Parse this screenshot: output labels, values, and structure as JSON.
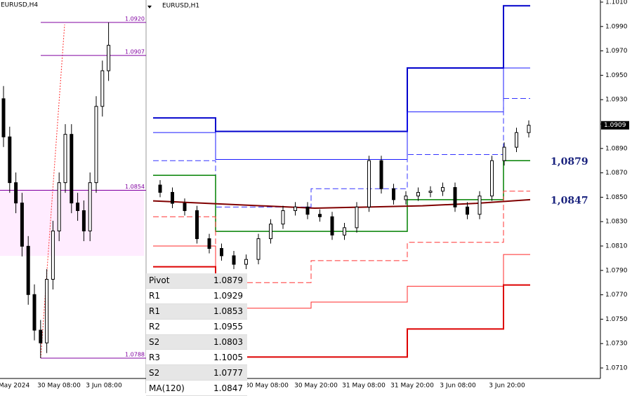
{
  "left_panel": {
    "symbol": "EURUSD,H4",
    "levels": [
      {
        "value": 1.092,
        "label": "1.0920"
      },
      {
        "value": 1.0907,
        "label": "1.0907"
      },
      {
        "value": 1.0854,
        "label": "1.0854"
      },
      {
        "value": 1.0788,
        "label": "1.0788"
      }
    ],
    "x_labels": [
      "May 2024",
      "30 May 08:00",
      "3 Jun 08:00"
    ],
    "candles": [
      [
        1.089,
        1.0895,
        1.0871,
        1.0875
      ],
      [
        1.0875,
        1.0879,
        1.0853,
        1.0857
      ],
      [
        1.0857,
        1.0861,
        1.0845,
        1.0849
      ],
      [
        1.0849,
        1.0853,
        1.0828,
        1.0832
      ],
      [
        1.0832,
        1.0836,
        1.0809,
        1.0813
      ],
      [
        1.0813,
        1.0817,
        1.0795,
        1.0799
      ],
      [
        1.0799,
        1.0803,
        1.0788,
        1.0794
      ],
      [
        1.0794,
        1.0823,
        1.079,
        1.0819
      ],
      [
        1.0819,
        1.0842,
        1.0815,
        1.0838
      ],
      [
        1.0838,
        1.0861,
        1.0834,
        1.0857
      ],
      [
        1.0857,
        1.088,
        1.0853,
        1.0876
      ],
      [
        1.0876,
        1.088,
        1.0845,
        1.0849
      ],
      [
        1.0849,
        1.0853,
        1.0842,
        1.0846
      ],
      [
        1.0846,
        1.085,
        1.0834,
        1.0838
      ],
      [
        1.0838,
        1.0861,
        1.0834,
        1.0857
      ],
      [
        1.0857,
        1.0891,
        1.0853,
        1.0887
      ],
      [
        1.0887,
        1.0905,
        1.0883,
        1.0901
      ],
      [
        1.0901,
        1.092,
        1.0897,
        1.0911
      ]
    ]
  },
  "right_panel": {
    "symbol": "EURUSD,H1",
    "yticks": [
      {
        "value": 1.071,
        "label": "1.0710"
      },
      {
        "value": 1.073,
        "label": "1.0730"
      },
      {
        "value": 1.075,
        "label": "1.0750"
      },
      {
        "value": 1.077,
        "label": "1.0770"
      },
      {
        "value": 1.079,
        "label": "1.0790"
      },
      {
        "value": 1.081,
        "label": "1.0810"
      },
      {
        "value": 1.083,
        "label": "1.0830"
      },
      {
        "value": 1.085,
        "label": "1.0850"
      },
      {
        "value": 1.087,
        "label": "1.0870"
      },
      {
        "value": 1.089,
        "label": "1.0890"
      },
      {
        "value": 1.091,
        "label": "1.0910"
      },
      {
        "value": 1.093,
        "label": "1.0930"
      },
      {
        "value": 1.095,
        "label": "1.0950"
      },
      {
        "value": 1.097,
        "label": "1.0970"
      },
      {
        "value": 1.099,
        "label": "1.0990"
      },
      {
        "value": 1.101,
        "label": "1.1010"
      }
    ],
    "x_labels": [
      "30 May 08:00",
      "30 May 20:00",
      "31 May 08:00",
      "31 May 20:00",
      "3 Jun 08:00",
      "3 Jun 20:00"
    ],
    "price": {
      "value": 1.0909,
      "label": "1.0909"
    },
    "annotations": [
      {
        "value": 1.0879,
        "label": "1,0879"
      },
      {
        "value": 1.0847,
        "label": "1,0847"
      }
    ],
    "levels": [
      {
        "color": "#0000cc",
        "width": 2,
        "dash": false,
        "values": [
          1.0915,
          1.0904,
          1.0904,
          1.0956,
          1.1007
        ]
      },
      {
        "color": "#1a1aff",
        "width": 1,
        "dash": false,
        "values": [
          1.0903,
          1.0881,
          1.0881,
          1.092,
          1.0956
        ]
      },
      {
        "color": "#3333ff",
        "width": 1,
        "dash": true,
        "values": [
          1.088,
          1.0842,
          1.0857,
          1.0885,
          1.0931
        ]
      },
      {
        "color": "#008000",
        "width": 1.5,
        "dash": false,
        "values": [
          1.0868,
          1.0822,
          1.0822,
          1.0848,
          1.088
        ]
      },
      {
        "color": "#ff3333",
        "width": 1,
        "dash": true,
        "values": [
          1.0834,
          1.078,
          1.0798,
          1.0813,
          1.0855
        ]
      },
      {
        "color": "#ff2a2a",
        "width": 1,
        "dash": false,
        "values": [
          1.081,
          1.0759,
          1.0764,
          1.0777,
          1.0803
        ]
      },
      {
        "color": "#dd0000",
        "width": 2,
        "dash": false,
        "values": [
          1.0793,
          1.0719,
          1.0719,
          1.0742,
          1.0778
        ]
      }
    ],
    "ma": {
      "color": "#800000",
      "values": [
        1.0847,
        1.0845,
        1.0843,
        1.0841,
        1.0842,
        1.0843,
        1.0845,
        1.0848
      ]
    },
    "candles": [
      [
        1.086,
        1.0864,
        1.085,
        1.0854
      ],
      [
        1.0854,
        1.0858,
        1.0841,
        1.0845
      ],
      [
        1.0845,
        1.0849,
        1.0835,
        1.0839
      ],
      [
        1.0839,
        1.0843,
        1.0812,
        1.0816
      ],
      [
        1.0816,
        1.082,
        1.0804,
        1.0808
      ],
      [
        1.0808,
        1.0812,
        1.0798,
        1.0802
      ],
      [
        1.0802,
        1.0806,
        1.0791,
        1.0795
      ],
      [
        1.0795,
        1.0803,
        1.0791,
        1.0799
      ],
      [
        1.0799,
        1.082,
        1.0795,
        1.0816
      ],
      [
        1.0816,
        1.0832,
        1.0812,
        1.0828
      ],
      [
        1.0828,
        1.0843,
        1.0824,
        1.0839
      ],
      [
        1.0839,
        1.0846,
        1.0835,
        1.0842
      ],
      [
        1.0842,
        1.0846,
        1.0832,
        1.0836
      ],
      [
        1.0836,
        1.084,
        1.083,
        1.0834
      ],
      [
        1.0834,
        1.0838,
        1.0815,
        1.0819
      ],
      [
        1.0819,
        1.0829,
        1.0815,
        1.0825
      ],
      [
        1.0825,
        1.0846,
        1.0821,
        1.0842
      ],
      [
        1.0842,
        1.0884,
        1.0838,
        1.088
      ],
      [
        1.088,
        1.0884,
        1.0853,
        1.0857
      ],
      [
        1.0857,
        1.0861,
        1.0844,
        1.0848
      ],
      [
        1.0848,
        1.0855,
        1.0844,
        1.0851
      ],
      [
        1.0851,
        1.0858,
        1.0847,
        1.0854
      ],
      [
        1.0854,
        1.0859,
        1.085,
        1.0855
      ],
      [
        1.0855,
        1.0862,
        1.0851,
        1.0858
      ],
      [
        1.0858,
        1.0862,
        1.0838,
        1.0842
      ],
      [
        1.0842,
        1.0846,
        1.0832,
        1.0836
      ],
      [
        1.0836,
        1.0855,
        1.0832,
        1.0851
      ],
      [
        1.0851,
        1.0884,
        1.0847,
        1.088
      ],
      [
        1.088,
        1.0895,
        1.0876,
        1.0891
      ],
      [
        1.0891,
        1.0907,
        1.0887,
        1.0903
      ],
      [
        1.0903,
        1.0913,
        1.0899,
        1.0909
      ]
    ]
  },
  "table": {
    "rows": [
      [
        "Pivot",
        "1.0879"
      ],
      [
        "R1",
        "1.0929"
      ],
      [
        "R1",
        "1.0853"
      ],
      [
        "R2",
        "1.0955"
      ],
      [
        "S2",
        "1.0803"
      ],
      [
        "R3",
        "1.1005"
      ],
      [
        "S2",
        "1.0777"
      ],
      [
        "MA(120)",
        "1.0847"
      ]
    ]
  }
}
